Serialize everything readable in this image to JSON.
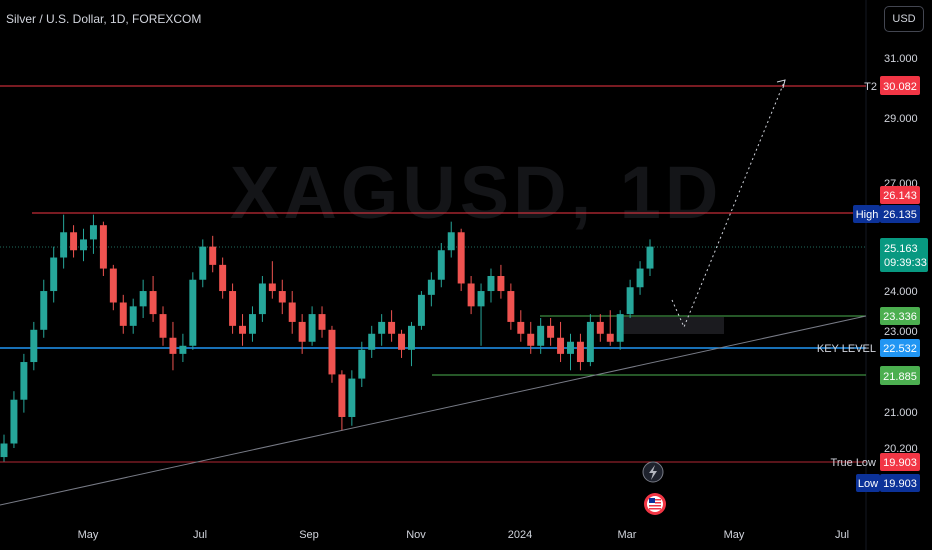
{
  "header": {
    "title": "Silver / U.S. Dollar, 1D, FOREXCOM",
    "currency": "USD",
    "watermark": "XAGUSD, 1D"
  },
  "icons": {
    "lightning": "lightning-icon",
    "flag": "us-flag-icon"
  },
  "colors": {
    "background": "#000000",
    "up": "#26a69a",
    "down": "#ef5350",
    "resistance": "#f23645",
    "key_level": "#2196f3",
    "support": "#4caf50",
    "trend": "#787b86",
    "axis_text": "#d1d4dc"
  },
  "chart_data": {
    "type": "candlestick",
    "symbol": "Silver / U.S. Dollar",
    "interval": "1D",
    "source": "FOREXCOM",
    "x_ticks": [
      "May",
      "Jul",
      "Sep",
      "Nov",
      "2024",
      "Mar",
      "May",
      "Jul"
    ],
    "y_ticks": [
      "31.000",
      "29.000",
      "27.000",
      "24.000",
      "23.000",
      "21.000",
      "20.200"
    ],
    "scale": "log",
    "grid": false,
    "price_labels": [
      {
        "name": "T2",
        "value": "30.082",
        "color": "#f23645"
      },
      {
        "name": "",
        "value": "26.143",
        "color": "#f23645"
      },
      {
        "name": "High",
        "value": "26.135",
        "color": "#0c3299"
      },
      {
        "name": "",
        "value": "25.163",
        "sub": "09:39:33",
        "color": "#089981"
      },
      {
        "name": "",
        "value": "23.336",
        "color": "#4caf50"
      },
      {
        "name": "KEY LEVEL",
        "value": "22.532",
        "color": "#2196f3"
      },
      {
        "name": "",
        "value": "21.885",
        "color": "#4caf50"
      },
      {
        "name": "True Low",
        "value": "19.903",
        "color": "#f23645"
      },
      {
        "name": "Low",
        "value": "19.903",
        "color": "#0c3299"
      }
    ],
    "ohlc_approx": [
      [
        20.0,
        20.5,
        19.9,
        20.3
      ],
      [
        20.3,
        21.5,
        20.2,
        21.3
      ],
      [
        21.3,
        22.4,
        21.0,
        22.2
      ],
      [
        22.2,
        23.2,
        22.0,
        23.0
      ],
      [
        23.0,
        24.3,
        22.8,
        24.0
      ],
      [
        24.0,
        25.2,
        23.7,
        24.9
      ],
      [
        24.9,
        26.1,
        24.6,
        25.6
      ],
      [
        25.6,
        25.8,
        24.9,
        25.1
      ],
      [
        25.1,
        25.7,
        24.8,
        25.4
      ],
      [
        25.4,
        26.1,
        25.0,
        25.8
      ],
      [
        25.8,
        25.9,
        24.4,
        24.6
      ],
      [
        24.6,
        24.7,
        23.5,
        23.7
      ],
      [
        23.7,
        23.9,
        22.9,
        23.1
      ],
      [
        23.1,
        23.8,
        22.9,
        23.6
      ],
      [
        23.6,
        24.3,
        23.3,
        24.0
      ],
      [
        24.0,
        24.4,
        23.2,
        23.4
      ],
      [
        23.4,
        23.6,
        22.6,
        22.8
      ],
      [
        22.8,
        23.2,
        22.0,
        22.4
      ],
      [
        22.4,
        22.9,
        22.2,
        22.6
      ],
      [
        22.6,
        24.5,
        22.5,
        24.3
      ],
      [
        24.3,
        25.4,
        24.1,
        25.2
      ],
      [
        25.2,
        25.5,
        24.5,
        24.7
      ],
      [
        24.7,
        24.9,
        23.8,
        24.0
      ],
      [
        24.0,
        24.2,
        22.9,
        23.1
      ],
      [
        23.1,
        23.4,
        22.6,
        22.9
      ],
      [
        22.9,
        23.6,
        22.7,
        23.4
      ],
      [
        23.4,
        24.4,
        23.2,
        24.2
      ],
      [
        24.2,
        24.8,
        23.8,
        24.0
      ],
      [
        24.0,
        24.3,
        23.4,
        23.7
      ],
      [
        23.7,
        24.0,
        22.9,
        23.2
      ],
      [
        23.2,
        23.4,
        22.4,
        22.7
      ],
      [
        22.7,
        23.6,
        22.6,
        23.4
      ],
      [
        23.4,
        23.6,
        22.8,
        23.0
      ],
      [
        23.0,
        23.1,
        21.7,
        21.9
      ],
      [
        21.9,
        22.0,
        20.6,
        20.9
      ],
      [
        20.9,
        22.0,
        20.7,
        21.8
      ],
      [
        21.8,
        22.7,
        21.6,
        22.5
      ],
      [
        22.5,
        23.1,
        22.3,
        22.9
      ],
      [
        22.9,
        23.4,
        22.6,
        23.2
      ],
      [
        23.2,
        23.5,
        22.7,
        22.9
      ],
      [
        22.9,
        23.0,
        22.3,
        22.5
      ],
      [
        22.5,
        23.2,
        22.1,
        23.1
      ],
      [
        23.1,
        24.0,
        23.0,
        23.9
      ],
      [
        23.9,
        24.5,
        23.6,
        24.3
      ],
      [
        24.3,
        25.3,
        24.1,
        25.1
      ],
      [
        25.1,
        25.9,
        24.9,
        25.6
      ],
      [
        25.6,
        25.7,
        24.0,
        24.2
      ],
      [
        24.2,
        24.4,
        23.4,
        23.6
      ],
      [
        23.6,
        24.2,
        22.6,
        24.0
      ],
      [
        24.0,
        24.6,
        23.7,
        24.4
      ],
      [
        24.4,
        24.7,
        23.8,
        24.0
      ],
      [
        24.0,
        24.2,
        23.0,
        23.2
      ],
      [
        23.2,
        23.5,
        22.7,
        22.9
      ],
      [
        22.9,
        23.2,
        22.4,
        22.6
      ],
      [
        22.6,
        23.3,
        22.4,
        23.1
      ],
      [
        23.1,
        23.3,
        22.6,
        22.8
      ],
      [
        22.8,
        23.2,
        22.2,
        22.4
      ],
      [
        22.4,
        22.9,
        22.0,
        22.7
      ],
      [
        22.7,
        22.9,
        22.0,
        22.2
      ],
      [
        22.2,
        23.4,
        22.1,
        23.2
      ],
      [
        23.2,
        23.4,
        22.7,
        22.9
      ],
      [
        22.9,
        23.5,
        22.6,
        22.7
      ],
      [
        22.7,
        23.5,
        22.5,
        23.4
      ],
      [
        23.4,
        24.3,
        23.3,
        24.1
      ],
      [
        24.1,
        24.8,
        23.9,
        24.6
      ],
      [
        24.6,
        25.4,
        24.4,
        25.2
      ]
    ]
  }
}
